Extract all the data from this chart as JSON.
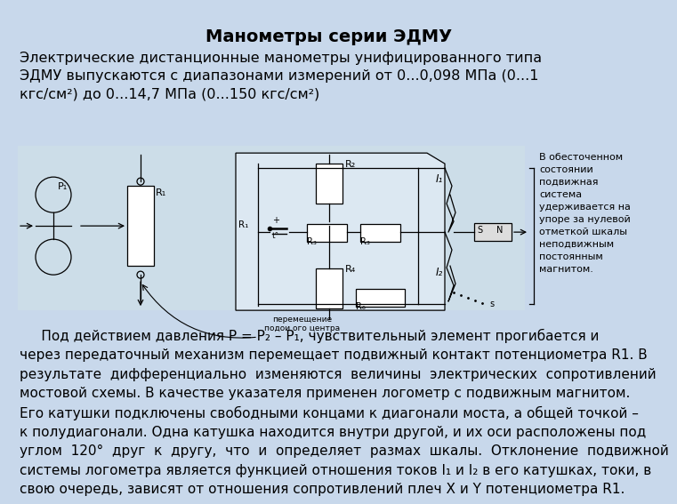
{
  "title": "Манометры серии ЭДМУ",
  "title_fontsize": 14,
  "bg_color": "#c8d8eb",
  "text_color": "#000000",
  "intro_text": "Электрические дистанционные манометры унифицированного типа\nЭДМУ выпускаются с диапазонами измерений от 0...0,098 МПа (0...1\nкгс/см²) до 0...14,7 МПа (0...150 кгс/см²)",
  "body_text": "     Под действием давления P = P₂ – P₁, чувствительный элемент прогибается и\nчерез передаточный механизм перемещает подвижный контакт потенциометра R1. В\nрезультате  дифференциально  изменяются  величины  электрических  сопротивлений\nмостовой схемы. В качестве указателя применен логометр с подвижным магнитом.\nЕго катушки подключены свободными концами к диагонали моста, а общей точкой –\nк полудиагонали. Одна катушка находится внутри другой, и их оси расположены под\nуглом  120°  друг  к  другу,  что  и  определяет  размах  шкалы.  Отклонение  подвижной\nсистемы логометра является функцией отношения токов I₁ и I₂ в его катушках, токи, в\nсвою очередь, зависят от отношения сопротивлений плеч X и Y потенциометра R1.",
  "side_text": "В обесточенном\nсостоянии\nподвижная\nсистема\nудерживается на\nупоре за нулевой\nотметкой шкалы\nнеподвижным\nпостоянным\nмагнитом.",
  "side_text_fontsize": 8,
  "intro_fontsize": 11.5,
  "body_fontsize": 11
}
